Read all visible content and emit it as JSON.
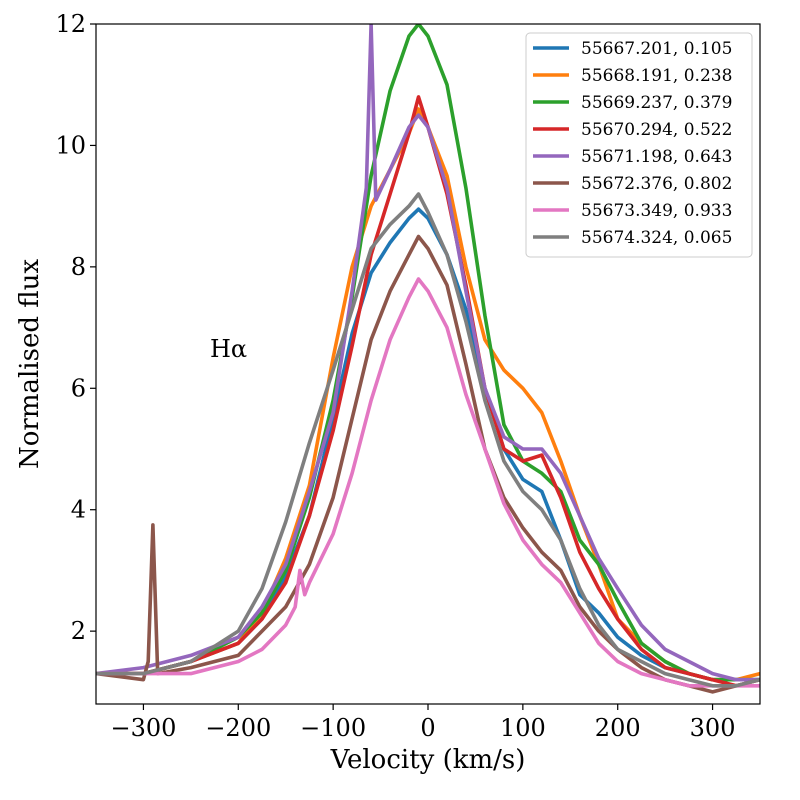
{
  "chart_data": {
    "type": "line",
    "title": "",
    "xlabel": "Velocity (km/s)",
    "ylabel": "Normalised flux",
    "xlim": [
      -350,
      350
    ],
    "ylim": [
      0.8,
      12
    ],
    "xticks": [
      -300,
      -200,
      -100,
      0,
      100,
      200,
      300
    ],
    "xtick_labels": [
      "−300",
      "−200",
      "−100",
      "0",
      "100",
      "200",
      "300"
    ],
    "yticks": [
      2,
      4,
      6,
      8,
      10,
      12
    ],
    "ytick_labels": [
      "2",
      "4",
      "6",
      "8",
      "10",
      "12"
    ],
    "grid": false,
    "legend_position": "top-right",
    "annotation": "Hα",
    "series": [
      {
        "name": "55667.201, 0.105",
        "color": "#1f77b4",
        "x": [
          -350,
          -300,
          -250,
          -200,
          -175,
          -150,
          -125,
          -100,
          -80,
          -60,
          -40,
          -20,
          -10,
          0,
          20,
          40,
          60,
          80,
          100,
          120,
          140,
          160,
          180,
          200,
          225,
          250,
          275,
          300,
          325,
          350
        ],
        "y": [
          1.3,
          1.3,
          1.5,
          1.8,
          2.2,
          2.9,
          3.9,
          5.5,
          6.9,
          7.9,
          8.4,
          8.8,
          8.95,
          8.8,
          8.2,
          7.3,
          6.0,
          5.0,
          4.5,
          4.3,
          3.5,
          2.6,
          2.3,
          1.9,
          1.6,
          1.4,
          1.3,
          1.2,
          1.2,
          1.2
        ]
      },
      {
        "name": "55668.191, 0.238",
        "color": "#ff7f0e",
        "x": [
          -350,
          -300,
          -250,
          -200,
          -175,
          -150,
          -125,
          -100,
          -80,
          -60,
          -40,
          -20,
          -10,
          0,
          20,
          40,
          60,
          80,
          100,
          120,
          140,
          160,
          180,
          200,
          225,
          250,
          275,
          300,
          325,
          350
        ],
        "y": [
          1.3,
          1.3,
          1.5,
          1.8,
          2.3,
          3.2,
          4.4,
          6.5,
          8.0,
          9.0,
          9.6,
          10.2,
          10.6,
          10.3,
          9.5,
          8.0,
          6.8,
          6.3,
          6.0,
          5.6,
          4.8,
          3.9,
          3.1,
          2.2,
          1.8,
          1.5,
          1.3,
          1.2,
          1.2,
          1.3
        ]
      },
      {
        "name": "55669.237, 0.379",
        "color": "#2ca02c",
        "x": [
          -350,
          -300,
          -250,
          -200,
          -175,
          -150,
          -125,
          -100,
          -80,
          -60,
          -40,
          -20,
          -10,
          0,
          20,
          40,
          60,
          80,
          100,
          120,
          140,
          160,
          180,
          200,
          225,
          250,
          275,
          300,
          325,
          350
        ],
        "y": [
          1.3,
          1.3,
          1.5,
          1.9,
          2.3,
          3.0,
          4.2,
          5.8,
          7.5,
          9.5,
          10.9,
          11.8,
          12.0,
          11.8,
          11.0,
          9.3,
          7.2,
          5.4,
          4.8,
          4.6,
          4.3,
          3.5,
          3.1,
          2.5,
          1.8,
          1.5,
          1.3,
          1.2,
          1.2,
          1.2
        ]
      },
      {
        "name": "55670.294, 0.522",
        "color": "#d62728",
        "x": [
          -350,
          -300,
          -250,
          -200,
          -175,
          -150,
          -125,
          -100,
          -80,
          -60,
          -40,
          -20,
          -10,
          0,
          20,
          40,
          60,
          80,
          100,
          120,
          140,
          160,
          180,
          200,
          225,
          250,
          275,
          300,
          325,
          350
        ],
        "y": [
          1.3,
          1.3,
          1.5,
          1.8,
          2.2,
          2.8,
          3.9,
          5.3,
          6.7,
          8.2,
          9.2,
          10.2,
          10.8,
          10.3,
          9.2,
          7.7,
          6.0,
          5.0,
          4.8,
          4.9,
          4.2,
          3.3,
          2.7,
          2.2,
          1.7,
          1.4,
          1.3,
          1.2,
          1.1,
          1.2
        ]
      },
      {
        "name": "55671.198, 0.643",
        "color": "#9467bd",
        "x": [
          -350,
          -300,
          -250,
          -200,
          -175,
          -150,
          -125,
          -100,
          -80,
          -65,
          -60,
          -55,
          -40,
          -20,
          -10,
          0,
          20,
          40,
          60,
          80,
          100,
          120,
          140,
          160,
          180,
          200,
          225,
          250,
          275,
          300,
          325,
          350
        ],
        "y": [
          1.3,
          1.4,
          1.6,
          1.9,
          2.4,
          3.1,
          4.3,
          5.6,
          7.6,
          9.3,
          12.0,
          9.1,
          9.6,
          10.3,
          10.5,
          10.3,
          9.3,
          7.6,
          6.0,
          5.2,
          5.0,
          5.0,
          4.6,
          3.9,
          3.2,
          2.7,
          2.1,
          1.7,
          1.5,
          1.3,
          1.2,
          1.2
        ]
      },
      {
        "name": "55672.376, 0.802",
        "color": "#8c564b",
        "x": [
          -350,
          -300,
          -295,
          -290,
          -285,
          -250,
          -200,
          -175,
          -150,
          -125,
          -100,
          -80,
          -60,
          -40,
          -20,
          -10,
          0,
          20,
          40,
          60,
          80,
          100,
          120,
          140,
          160,
          180,
          200,
          225,
          250,
          275,
          300,
          325,
          350
        ],
        "y": [
          1.3,
          1.2,
          1.5,
          3.75,
          1.3,
          1.4,
          1.6,
          2.0,
          2.4,
          3.1,
          4.2,
          5.5,
          6.8,
          7.6,
          8.2,
          8.5,
          8.3,
          7.7,
          6.4,
          5.0,
          4.2,
          3.7,
          3.3,
          3.0,
          2.4,
          2.0,
          1.7,
          1.4,
          1.2,
          1.1,
          1.0,
          1.1,
          1.2
        ]
      },
      {
        "name": "55673.349, 0.933",
        "color": "#e377c2",
        "x": [
          -350,
          -300,
          -250,
          -200,
          -175,
          -150,
          -140,
          -135,
          -130,
          -125,
          -100,
          -80,
          -60,
          -40,
          -20,
          -10,
          0,
          20,
          40,
          60,
          80,
          100,
          120,
          140,
          160,
          180,
          200,
          225,
          250,
          275,
          300,
          325,
          350
        ],
        "y": [
          1.3,
          1.3,
          1.3,
          1.5,
          1.7,
          2.1,
          2.4,
          3.0,
          2.6,
          2.8,
          3.6,
          4.6,
          5.8,
          6.8,
          7.5,
          7.8,
          7.6,
          7.0,
          5.9,
          5.0,
          4.1,
          3.5,
          3.1,
          2.8,
          2.3,
          1.8,
          1.5,
          1.3,
          1.2,
          1.1,
          1.1,
          1.1,
          1.1
        ]
      },
      {
        "name": "55674.324, 0.065",
        "color": "#7f7f7f",
        "x": [
          -350,
          -300,
          -250,
          -200,
          -175,
          -150,
          -125,
          -100,
          -80,
          -60,
          -40,
          -20,
          -10,
          0,
          20,
          40,
          60,
          80,
          100,
          120,
          140,
          160,
          180,
          200,
          225,
          250,
          275,
          300,
          325,
          350
        ],
        "y": [
          1.3,
          1.3,
          1.5,
          2.0,
          2.7,
          3.8,
          5.1,
          6.3,
          7.3,
          8.3,
          8.7,
          9.0,
          9.2,
          8.9,
          8.2,
          7.1,
          5.8,
          4.8,
          4.3,
          4.0,
          3.5,
          2.7,
          2.1,
          1.7,
          1.5,
          1.3,
          1.2,
          1.1,
          1.1,
          1.2
        ]
      }
    ]
  }
}
